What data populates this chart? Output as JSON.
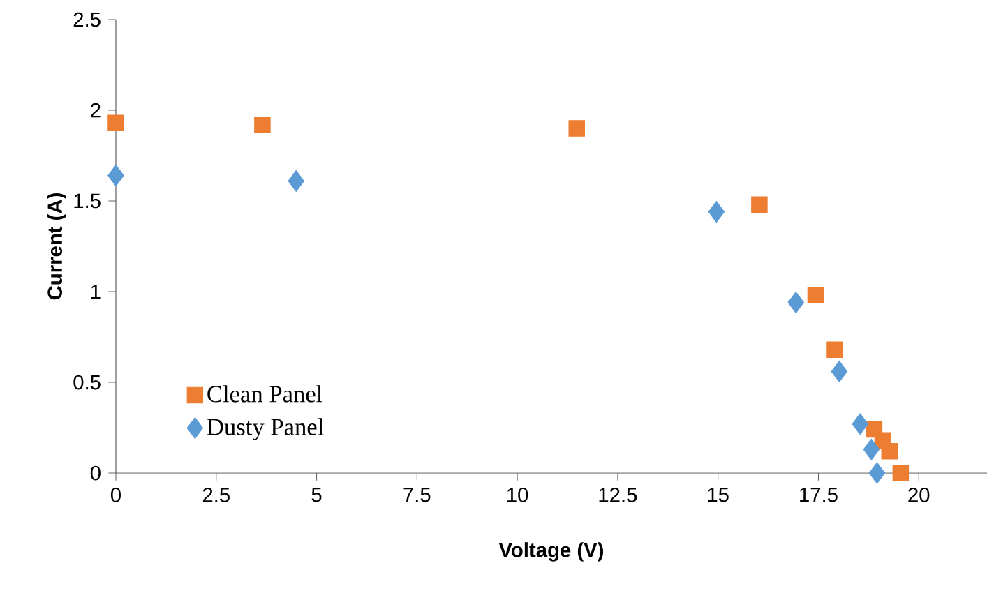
{
  "chart_data": {
    "type": "scatter",
    "xlabel": "Voltage (V)",
    "ylabel": "Current (A)",
    "xlim": [
      0,
      21.7
    ],
    "ylim": [
      0,
      2.5
    ],
    "xticks": [
      0,
      2.5,
      5,
      7.5,
      10,
      12.5,
      15,
      17.5,
      20
    ],
    "yticks": [
      0,
      0.5,
      1,
      1.5,
      2,
      2.5
    ],
    "grid": false,
    "legend": "bottom left",
    "series": [
      {
        "name": "Clean Panel",
        "color": "#ed7d31",
        "marker": "square",
        "x": [
          0,
          3.65,
          11.48,
          16.03,
          17.43,
          17.91,
          18.89,
          19.1,
          19.27,
          19.55
        ],
        "values": [
          1.93,
          1.92,
          1.9,
          1.48,
          0.98,
          0.68,
          0.24,
          0.18,
          0.12,
          0
        ]
      },
      {
        "name": "Dusty Panel",
        "color": "#5b9bd5",
        "marker": "diamond",
        "x": [
          0,
          4.49,
          14.96,
          16.94,
          18.02,
          18.54,
          18.82,
          18.96
        ],
        "values": [
          1.64,
          1.61,
          1.44,
          0.94,
          0.56,
          0.27,
          0.13,
          0
        ]
      }
    ]
  }
}
